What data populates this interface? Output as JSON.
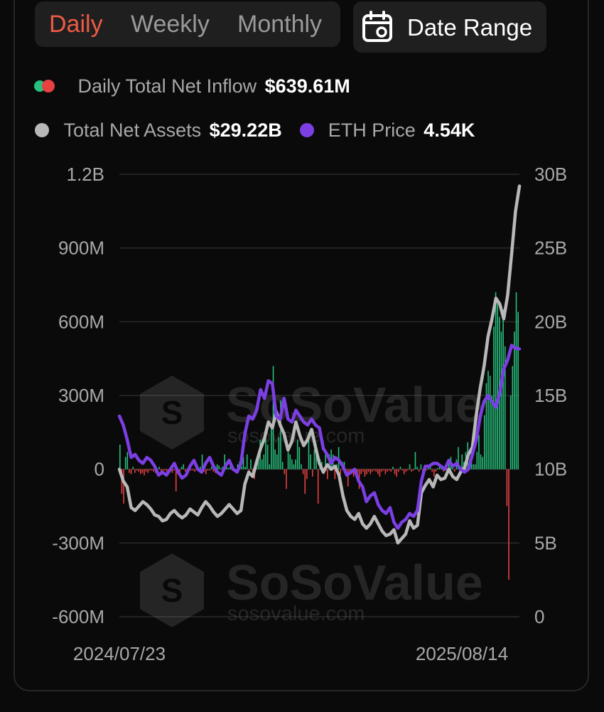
{
  "tabs": [
    {
      "label": "Daily",
      "active": true
    },
    {
      "label": "Weekly",
      "active": false
    },
    {
      "label": "Monthly",
      "active": false
    }
  ],
  "date_range_label": "Date Range",
  "legend": {
    "inflow": {
      "label": "Daily Total Net Inflow",
      "value": "$639.61M"
    },
    "assets": {
      "label": "Total Net Assets",
      "value": "$29.22B"
    },
    "eth": {
      "label": "ETH Price",
      "value": "4.54K"
    }
  },
  "watermark": {
    "brand": "SoSoValue",
    "url": "sosovalue.com"
  },
  "colors": {
    "positive": "#27c07d",
    "negative": "#e84142",
    "assets": "#b8b8b8",
    "eth": "#7b3fe4",
    "accent": "#ee5a45"
  },
  "chart_data": {
    "type": "bar+line",
    "x_start": "2024/07/23",
    "x_end": "2025/08/14",
    "left_axis": {
      "ticks": [
        "1.2B",
        "900M",
        "600M",
        "300M",
        "0",
        "-300M",
        "-600M"
      ],
      "range": [
        -600000000,
        1200000000
      ]
    },
    "right_axis": {
      "ticks": [
        "30B",
        "25B",
        "20B",
        "15B",
        "10B",
        "5B",
        "0"
      ],
      "range": [
        0,
        30000000000
      ]
    },
    "series": [
      {
        "name": "Daily Total Net Inflow",
        "type": "bar",
        "unit": "USD",
        "values": [
          100000000,
          -100000000,
          -140000000,
          50000000,
          70000000,
          -15000000,
          -20000000,
          10000000,
          -15000000,
          -5000000,
          -10000000,
          -20000000,
          -15000000,
          -25000000,
          -10000000,
          -15000000,
          -5000000,
          -5000000,
          -10000000,
          -15000000,
          -5000000,
          10000000,
          -10000000,
          -5000000,
          -5000000,
          -10000000,
          -5000000,
          -10000000,
          -15000000,
          -5000000,
          -90000000,
          -20000000,
          -15000000,
          10000000,
          20000000,
          -10000000,
          -5000000,
          -10000000,
          -5000000,
          -5000000,
          -10000000,
          20000000,
          -5000000,
          10000000,
          60000000,
          -10000000,
          -20000000,
          -5000000,
          -5000000,
          10000000,
          -10000000,
          -15000000,
          20000000,
          15000000,
          5000000,
          10000000,
          60000000,
          10000000,
          5000000,
          10000000,
          -5000000,
          -5000000,
          -10000000,
          20000000,
          30000000,
          10000000,
          50000000,
          10000000,
          60000000,
          -5000000,
          40000000,
          -20000000,
          -40000000,
          30000000,
          60000000,
          120000000,
          40000000,
          60000000,
          130000000,
          100000000,
          20000000,
          180000000,
          420000000,
          80000000,
          60000000,
          130000000,
          280000000,
          30000000,
          -20000000,
          -80000000,
          70000000,
          60000000,
          40000000,
          20000000,
          40000000,
          120000000,
          90000000,
          20000000,
          -20000000,
          -100000000,
          -40000000,
          150000000,
          60000000,
          -30000000,
          80000000,
          100000000,
          -140000000,
          40000000,
          30000000,
          -20000000,
          60000000,
          -40000000,
          60000000,
          80000000,
          60000000,
          -40000000,
          20000000,
          90000000,
          -20000000,
          30000000,
          30000000,
          -30000000,
          -70000000,
          -10000000,
          -20000000,
          -30000000,
          -10000000,
          -40000000,
          -80000000,
          -20000000,
          -10000000,
          -30000000,
          -20000000,
          -10000000,
          -20000000,
          -10000000,
          -5000000,
          -10000000,
          -20000000,
          -30000000,
          -10000000,
          -5000000,
          -20000000,
          -10000000,
          -5000000,
          -10000000,
          10000000,
          -20000000,
          -30000000,
          -10000000,
          10000000,
          -5000000,
          -20000000,
          -10000000,
          -5000000,
          20000000,
          -10000000,
          -5000000,
          70000000,
          10000000,
          -10000000,
          20000000,
          -20000000,
          10000000,
          -5000000,
          5000000,
          10000000,
          -10000000,
          -30000000,
          -10000000,
          5000000,
          20000000,
          5000000,
          -10000000,
          10000000,
          -5000000,
          30000000,
          50000000,
          10000000,
          -10000000,
          40000000,
          90000000,
          -10000000,
          60000000,
          30000000,
          70000000,
          110000000,
          40000000,
          80000000,
          20000000,
          20000000,
          70000000,
          140000000,
          60000000,
          50000000,
          220000000,
          350000000,
          400000000,
          380000000,
          300000000,
          580000000,
          720000000,
          680000000,
          620000000,
          560000000,
          650000000,
          500000000,
          -150000000,
          -450000000,
          300000000,
          420000000,
          560000000,
          720000000,
          640000000
        ]
      },
      {
        "name": "Total Net Assets",
        "type": "line",
        "unit": "USD",
        "values": [
          10000000000,
          9200000000,
          8800000000,
          7400000000,
          7200000000,
          7500000000,
          7800000000,
          7600000000,
          7300000000,
          6900000000,
          6800000000,
          6500000000,
          6600000000,
          7000000000,
          7200000000,
          6900000000,
          6700000000,
          6900000000,
          7300000000,
          7100000000,
          6900000000,
          7400000000,
          7800000000,
          7500000000,
          7100000000,
          6800000000,
          7000000000,
          7300000000,
          7600000000,
          7300000000,
          7000000000,
          7200000000,
          9000000000,
          9800000000,
          9500000000,
          10500000000,
          11400000000,
          12100000000,
          13200000000,
          12800000000,
          13900000000,
          13000000000,
          12400000000,
          11300000000,
          11900000000,
          13200000000,
          12300000000,
          11600000000,
          12000000000,
          12700000000,
          11500000000,
          10400000000,
          9800000000,
          10300000000,
          10000000000,
          10200000000,
          9600000000,
          8200000000,
          7200000000,
          6800000000,
          6600000000,
          7000000000,
          6300000000,
          6000000000,
          6300000000,
          6800000000,
          6300000000,
          5800000000,
          5500000000,
          5600000000,
          5900000000,
          5000000000,
          5300000000,
          5600000000,
          6500000000,
          6000000000,
          6200000000,
          8400000000,
          8900000000,
          9300000000,
          8800000000,
          9600000000,
          9300000000,
          9400000000,
          10000000000,
          9500000000,
          9300000000,
          9800000000,
          10100000000,
          11000000000,
          11500000000,
          13700000000,
          15500000000,
          17000000000,
          19000000000,
          20200000000,
          21600000000,
          21200000000,
          20200000000,
          21800000000,
          24600000000,
          27500000000,
          29200000000
        ]
      },
      {
        "name": "ETH Price",
        "type": "line",
        "unit": "USD",
        "values": [
          3400,
          3250,
          3000,
          2700,
          2750,
          2650,
          2600,
          2700,
          2650,
          2550,
          2400,
          2450,
          2400,
          2500,
          2600,
          2450,
          2350,
          2400,
          2550,
          2650,
          2500,
          2450,
          2600,
          2700,
          2550,
          2450,
          2400,
          2550,
          2650,
          2500,
          2450,
          2600,
          3100,
          3400,
          3350,
          3500,
          3850,
          3700,
          4000,
          3950,
          3400,
          3350,
          3700,
          3350,
          3300,
          3500,
          3400,
          3300,
          3250,
          3350,
          3250,
          3200,
          2850,
          2750,
          2600,
          2700,
          2650,
          2550,
          2400,
          2450,
          2500,
          2300,
          2200,
          1950,
          2050,
          2100,
          1900,
          1800,
          1750,
          1850,
          1600,
          1500,
          1600,
          1650,
          1750,
          1700,
          1800,
          2300,
          2550,
          2550,
          2600,
          2600,
          2550,
          2500,
          2650,
          2550,
          2600,
          2500,
          2450,
          2500,
          2750,
          3000,
          3400,
          3650,
          3750,
          3650,
          3550,
          3800,
          4200,
          4350,
          4600,
          4550,
          4540
        ]
      }
    ]
  }
}
